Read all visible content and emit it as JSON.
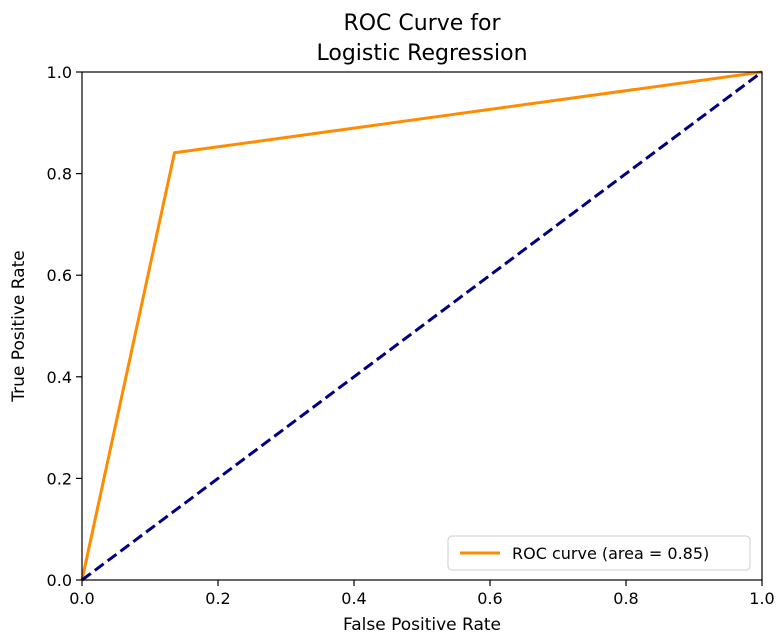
{
  "chart_data": {
    "type": "line",
    "title": [
      "ROC Curve for",
      "Logistic Regression"
    ],
    "xlabel": "False Positive Rate",
    "ylabel": "True Positive Rate",
    "xlim": [
      0.0,
      1.0
    ],
    "ylim": [
      0.0,
      1.0
    ],
    "x_ticks": [
      0.0,
      0.2,
      0.4,
      0.6,
      0.8,
      1.0
    ],
    "x_tick_labels": [
      "0.0",
      "0.2",
      "0.4",
      "0.6",
      "0.8",
      "1.0"
    ],
    "y_ticks": [
      0.0,
      0.2,
      0.4,
      0.6,
      0.8,
      1.0
    ],
    "y_tick_labels": [
      "0.0",
      "0.2",
      "0.4",
      "0.6",
      "0.8",
      "1.0"
    ],
    "grid": false,
    "legend_position": "lower-right",
    "series": [
      {
        "name": "ROC curve (area = 0.85)",
        "color": "#ff8c00",
        "style": "solid",
        "x": [
          0.0,
          0.136,
          1.0
        ],
        "y": [
          0.0,
          0.841,
          1.0
        ]
      },
      {
        "color": "#000080",
        "style": "dashed",
        "x": [
          0.0,
          1.0
        ],
        "y": [
          0.0,
          1.0
        ]
      }
    ]
  }
}
